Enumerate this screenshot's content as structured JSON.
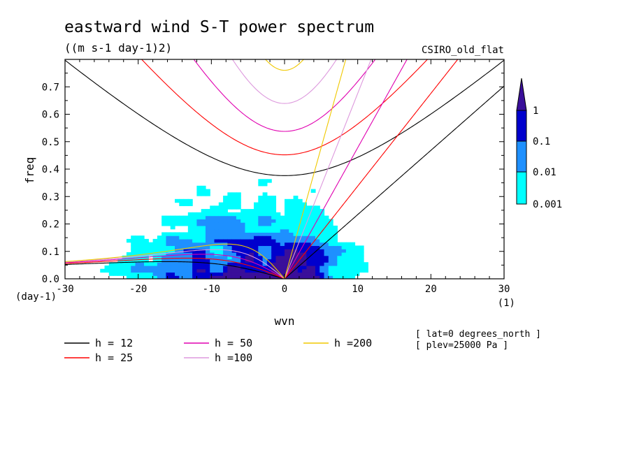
{
  "chart_data": {
    "type": "contour",
    "title": "eastward wind S-T power spectrum",
    "units": "((m s-1 day-1)2)",
    "model_label": "CSIRO_old_flat",
    "xlabel": "wvn",
    "ylabel": "freq",
    "x_unit_label": "(1)",
    "y_unit_label": "(day-1)",
    "xlim": [
      -30,
      30
    ],
    "ylim": [
      0,
      0.8
    ],
    "x_ticks": [
      -30,
      -20,
      -10,
      0,
      10,
      20,
      30
    ],
    "x_tick_labels": [
      "-30",
      "-20",
      "-10",
      "0",
      "10",
      "20",
      "30"
    ],
    "y_ticks": [
      0.0,
      0.1,
      0.2,
      0.3,
      0.4,
      0.5,
      0.6,
      0.7
    ],
    "y_tick_labels": [
      "0.0",
      "0.1",
      "0.2",
      "0.3",
      "0.4",
      "0.5",
      "0.6",
      "0.7"
    ],
    "colorbar": {
      "levels": [
        0.001,
        0.01,
        0.1,
        1
      ],
      "labels": [
        "0.001",
        "0.01",
        "0.1",
        "1"
      ],
      "colors": [
        "#00ffff",
        "#1e90ff",
        "#0000cd",
        "#3a0f9a"
      ]
    },
    "dispersion_curves": [
      {
        "name": "h = 12",
        "h": 12,
        "color": "#000000"
      },
      {
        "name": "h = 25",
        "h": 25,
        "color": "#ff0000"
      },
      {
        "name": "h = 50",
        "h": 50,
        "color": "#e000b0"
      },
      {
        "name": "h =100",
        "h": 100,
        "color": "#dd99dd"
      },
      {
        "name": "h =200",
        "h": 200,
        "color": "#f0c800"
      }
    ],
    "annotations": [
      "[ lat=0 degrees_north ]",
      "[ plev=25000 Pa ]"
    ]
  }
}
